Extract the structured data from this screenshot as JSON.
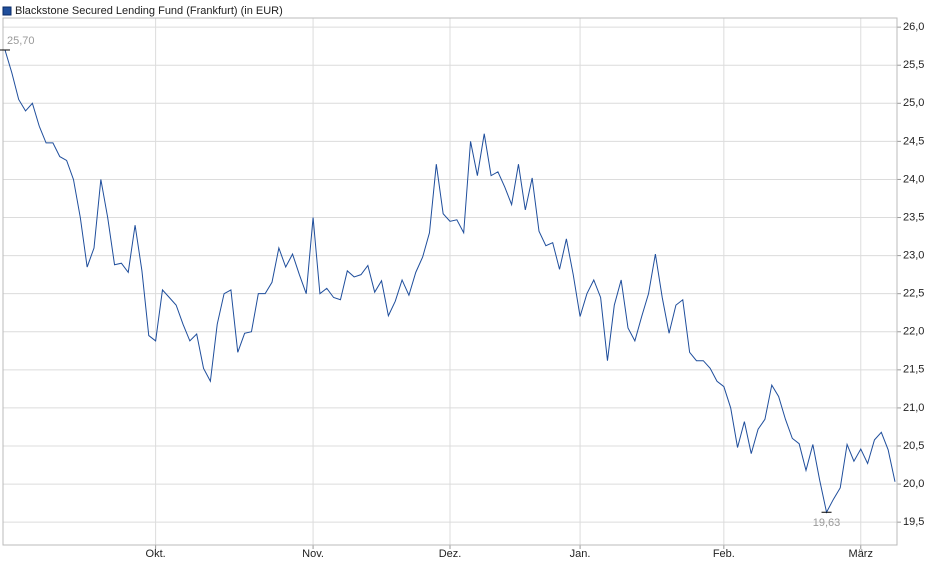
{
  "chart_data": {
    "type": "line",
    "categories": [
      null,
      null,
      null,
      null,
      null,
      null,
      null,
      null,
      null,
      null,
      null,
      null,
      null,
      null,
      null,
      null,
      null,
      null,
      null,
      null,
      null,
      null,
      "Okt.",
      null,
      null,
      null,
      null,
      null,
      null,
      null,
      null,
      null,
      null,
      null,
      null,
      null,
      null,
      null,
      null,
      null,
      null,
      null,
      null,
      null,
      null,
      "Nov.",
      null,
      null,
      null,
      null,
      null,
      null,
      null,
      null,
      null,
      null,
      null,
      null,
      null,
      null,
      null,
      null,
      null,
      null,
      null,
      "Dez.",
      null,
      null,
      null,
      null,
      null,
      null,
      null,
      null,
      null,
      null,
      null,
      null,
      null,
      null,
      null,
      null,
      null,
      null,
      "Jan.",
      null,
      null,
      null,
      null,
      null,
      null,
      null,
      null,
      null,
      null,
      null,
      null,
      null,
      null,
      null,
      null,
      null,
      null,
      null,
      null,
      "Feb.",
      null,
      null,
      null,
      null,
      null,
      null,
      null,
      null,
      null,
      null,
      null,
      null,
      null,
      null,
      null,
      null,
      null,
      null,
      null,
      "März",
      null,
      null,
      null,
      null,
      null
    ],
    "series": [
      {
        "name": "Blackstone Secured Lending Fund (Frankfurt) (in EUR)",
        "color": "#1f4e9c",
        "values": [
          25.7,
          25.4,
          25.05,
          24.9,
          25.0,
          24.7,
          24.48,
          24.48,
          24.3,
          24.25,
          24.0,
          23.5,
          22.85,
          23.1,
          24.0,
          23.5,
          22.88,
          22.9,
          22.78,
          23.4,
          22.8,
          21.95,
          21.88,
          22.55,
          22.45,
          22.35,
          22.1,
          21.88,
          21.97,
          21.52,
          21.35,
          22.1,
          22.5,
          22.55,
          21.73,
          21.98,
          22.0,
          22.5,
          22.5,
          22.65,
          23.1,
          22.85,
          23.02,
          22.75,
          22.5,
          23.5,
          22.5,
          22.57,
          22.45,
          22.42,
          22.8,
          22.72,
          22.75,
          22.87,
          22.52,
          22.67,
          22.21,
          22.4,
          22.68,
          22.48,
          22.78,
          22.98,
          23.3,
          24.2,
          23.55,
          23.45,
          23.47,
          23.3,
          24.5,
          24.05,
          24.6,
          24.05,
          24.1,
          23.9,
          23.67,
          24.2,
          23.6,
          24.02,
          23.32,
          23.13,
          23.17,
          22.82,
          23.22,
          22.75,
          22.2,
          22.5,
          22.68,
          22.45,
          21.62,
          22.35,
          22.68,
          22.05,
          21.88,
          22.2,
          22.5,
          23.02,
          22.45,
          21.98,
          22.35,
          22.42,
          21.73,
          21.62,
          21.62,
          21.52,
          21.35,
          21.28,
          21.0,
          20.48,
          20.82,
          20.4,
          20.72,
          20.85,
          21.3,
          21.15,
          20.85,
          20.6,
          20.53,
          20.18,
          20.52,
          20.05,
          19.63,
          19.8,
          19.95,
          20.52,
          20.3,
          20.46,
          20.27,
          20.58,
          20.68,
          20.45,
          20.03
        ],
        "value_labels": [
          "25,70",
          null,
          null,
          null,
          null,
          null,
          null,
          null,
          null,
          null,
          null,
          null,
          null,
          null,
          null,
          null,
          null,
          null,
          null,
          null,
          null,
          null,
          null,
          null,
          null,
          null,
          null,
          null,
          null,
          null,
          null,
          null,
          null,
          null,
          null,
          null,
          null,
          null,
          null,
          null,
          null,
          null,
          null,
          null,
          null,
          null,
          null,
          null,
          null,
          null,
          null,
          null,
          null,
          null,
          null,
          null,
          null,
          null,
          null,
          null,
          null,
          null,
          null,
          null,
          null,
          null,
          null,
          null,
          null,
          null,
          null,
          null,
          null,
          null,
          null,
          null,
          null,
          null,
          null,
          null,
          null,
          null,
          null,
          null,
          null,
          null,
          null,
          null,
          null,
          null,
          null,
          null,
          null,
          null,
          null,
          null,
          null,
          null,
          null,
          null,
          null,
          null,
          null,
          null,
          null,
          null,
          null,
          null,
          null,
          null,
          null,
          null,
          null,
          null,
          null,
          null,
          null,
          null,
          null,
          null,
          "19,63",
          null,
          null,
          null,
          null,
          null,
          null,
          null,
          null,
          null,
          null
        ]
      }
    ],
    "ylim": [
      19.2,
      26.12
    ],
    "yticks": [
      {
        "value": 19.5,
        "label": "19,5"
      },
      {
        "value": 20.0,
        "label": "20,0"
      },
      {
        "value": 20.5,
        "label": "20,5"
      },
      {
        "value": 21.0,
        "label": "21,0"
      },
      {
        "value": 21.5,
        "label": "21,5"
      },
      {
        "value": 22.0,
        "label": "22,0"
      },
      {
        "value": 22.5,
        "label": "22,5"
      },
      {
        "value": 23.0,
        "label": "23,0"
      },
      {
        "value": 23.5,
        "label": "23,5"
      },
      {
        "value": 24.0,
        "label": "24,0"
      },
      {
        "value": 24.5,
        "label": "24,5"
      },
      {
        "value": 25.0,
        "label": "25,0"
      },
      {
        "value": 25.5,
        "label": "25,5"
      },
      {
        "value": 26.0,
        "label": "26,0"
      }
    ],
    "grid": true
  }
}
